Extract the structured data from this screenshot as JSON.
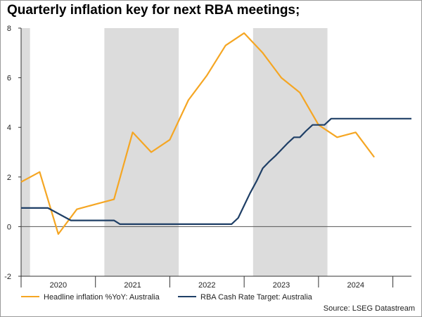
{
  "chart_data": {
    "type": "line",
    "title": "Quarterly inflation key for next RBA meetings;",
    "source": "Source: LSEG Datastream",
    "ylim": [
      -2,
      8
    ],
    "yticks": [
      -2,
      0,
      2,
      4,
      6,
      8
    ],
    "xlim": [
      2019.5,
      2024.75
    ],
    "year_labels": [
      {
        "label": "2020",
        "x": 2020.0
      },
      {
        "label": "2021",
        "x": 2021.0
      },
      {
        "label": "2022",
        "x": 2022.0
      },
      {
        "label": "2023",
        "x": 2023.0
      },
      {
        "label": "2024",
        "x": 2024.0
      }
    ],
    "shaded_spans": [
      [
        2019.5,
        2019.62
      ],
      [
        2020.62,
        2021.62
      ],
      [
        2022.62,
        2023.62
      ]
    ],
    "series": [
      {
        "name": "Headline inflation %YoY: Australia",
        "color": "#F5A623",
        "x": [
          2019.5,
          2019.75,
          2020.0,
          2020.25,
          2020.5,
          2020.75,
          2021.0,
          2021.25,
          2021.5,
          2021.75,
          2022.0,
          2022.25,
          2022.5,
          2022.75,
          2023.0,
          2023.25,
          2023.5,
          2023.75,
          2024.0,
          2024.25
        ],
        "values": [
          1.8,
          2.2,
          -0.3,
          0.7,
          0.9,
          1.1,
          3.8,
          3.0,
          3.5,
          5.1,
          6.1,
          7.3,
          7.8,
          7.0,
          6.0,
          5.4,
          4.1,
          3.6,
          3.8,
          2.8
        ]
      },
      {
        "name": "RBA Cash Rate Target: Australia",
        "color": "#1F3F66",
        "x": [
          2019.5,
          2019.79,
          2019.86,
          2020.17,
          2020.25,
          2020.5,
          2020.75,
          2020.83,
          2021.0,
          2021.5,
          2022.0,
          2022.33,
          2022.42,
          2022.5,
          2022.58,
          2022.67,
          2022.75,
          2022.83,
          2022.92,
          2023.0,
          2023.08,
          2023.17,
          2023.25,
          2023.33,
          2023.42,
          2023.5,
          2023.58,
          2023.67,
          2023.75,
          2024.0,
          2024.5,
          2024.75
        ],
        "values": [
          0.75,
          0.75,
          0.75,
          0.25,
          0.25,
          0.25,
          0.25,
          0.1,
          0.1,
          0.1,
          0.1,
          0.1,
          0.35,
          0.85,
          1.35,
          1.85,
          2.35,
          2.6,
          2.85,
          3.1,
          3.35,
          3.6,
          3.6,
          3.85,
          4.1,
          4.1,
          4.1,
          4.35,
          4.35,
          4.35,
          4.35,
          4.35
        ]
      }
    ]
  }
}
